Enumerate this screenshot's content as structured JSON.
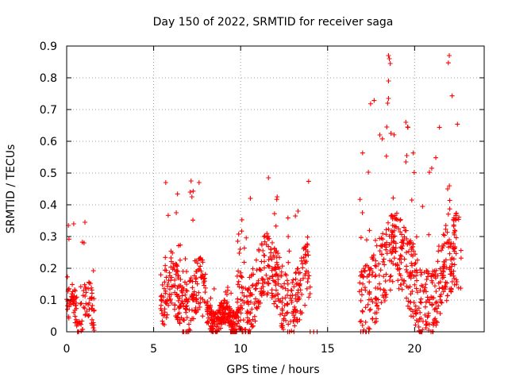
{
  "chart_data": {
    "type": "scatter",
    "title": "Day 150 of 2022, SRMTID for receiver saga",
    "xlabel": "GPS time / hours",
    "ylabel": "SRMTID / TECUs",
    "xlim": [
      0,
      24
    ],
    "ylim": [
      0,
      0.9
    ],
    "x_ticks": [
      0,
      5,
      10,
      15,
      20
    ],
    "y_ticks": [
      0,
      0.1,
      0.2,
      0.3,
      0.4,
      0.5,
      0.6,
      0.7,
      0.8,
      0.9
    ],
    "grid": true,
    "marker": "+",
    "color": "#ff0000",
    "series": [
      {
        "name": "SRMTID",
        "segments": [
          {
            "x_start": 0.0,
            "x_end": 1.6,
            "density": 110,
            "base": 0.07,
            "spread": 0.06,
            "peak": 0.34
          },
          {
            "x_start": 5.4,
            "x_end": 8.0,
            "density": 240,
            "base": 0.1,
            "spread": 0.09,
            "peak": 0.47
          },
          {
            "x_start": 8.0,
            "x_end": 9.8,
            "density": 220,
            "base": 0.04,
            "spread": 0.04,
            "peak": 0.14
          },
          {
            "x_start": 9.8,
            "x_end": 14.0,
            "density": 360,
            "base": 0.14,
            "spread": 0.1,
            "peak": 0.48
          },
          {
            "x_start": 16.8,
            "x_end": 22.7,
            "density": 520,
            "base": 0.17,
            "spread": 0.12,
            "peak": 0.87
          }
        ],
        "points": [
          [
            0.1,
            0.335
          ],
          [
            1.05,
            0.345
          ],
          [
            1.0,
            0.28
          ],
          [
            7.15,
            0.475
          ],
          [
            7.1,
            0.44
          ],
          [
            7.2,
            0.425
          ],
          [
            6.3,
            0.375
          ],
          [
            11.6,
            0.485
          ],
          [
            13.3,
            0.38
          ],
          [
            12.1,
            0.425
          ],
          [
            18.5,
            0.87
          ],
          [
            18.55,
            0.86
          ],
          [
            18.6,
            0.845
          ],
          [
            18.5,
            0.79
          ],
          [
            18.5,
            0.735
          ],
          [
            18.45,
            0.72
          ],
          [
            19.5,
            0.66
          ],
          [
            19.6,
            0.645
          ],
          [
            18.4,
            0.645
          ],
          [
            18.0,
            0.62
          ],
          [
            19.55,
            0.555
          ],
          [
            19.5,
            0.535
          ],
          [
            21.9,
            0.45
          ],
          [
            17.0,
            0.375
          ],
          [
            14.0,
            0.0
          ],
          [
            14.2,
            0.0
          ],
          [
            14.4,
            0.0
          ]
        ]
      }
    ]
  }
}
